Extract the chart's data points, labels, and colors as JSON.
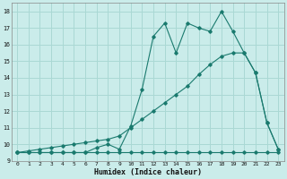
{
  "title": "",
  "xlabel": "Humidex (Indice chaleur)",
  "ylabel": "",
  "bg_color": "#caecea",
  "grid_color": "#aad8d4",
  "line_color": "#1a7a6e",
  "xlim": [
    -0.5,
    23.5
  ],
  "ylim": [
    9,
    18.5
  ],
  "yticks": [
    9,
    10,
    11,
    12,
    13,
    14,
    15,
    16,
    17,
    18
  ],
  "xticks": [
    0,
    1,
    2,
    3,
    4,
    5,
    6,
    7,
    8,
    9,
    10,
    11,
    12,
    13,
    14,
    15,
    16,
    17,
    18,
    19,
    20,
    21,
    22,
    23
  ],
  "line1_x": [
    0,
    1,
    2,
    3,
    4,
    5,
    6,
    7,
    8,
    9,
    10,
    11,
    12,
    13,
    14,
    15,
    16,
    17,
    18,
    19,
    20,
    21,
    22,
    23
  ],
  "line1_y": [
    9.5,
    9.5,
    9.5,
    9.5,
    9.5,
    9.5,
    9.5,
    9.5,
    9.5,
    9.5,
    9.5,
    9.5,
    9.5,
    9.5,
    9.5,
    9.5,
    9.5,
    9.5,
    9.5,
    9.5,
    9.5,
    9.5,
    9.5,
    9.5
  ],
  "line2_x": [
    0,
    1,
    2,
    3,
    4,
    5,
    6,
    7,
    8,
    9,
    10,
    11,
    12,
    13,
    14,
    15,
    16,
    17,
    18,
    19,
    20,
    21,
    22,
    23
  ],
  "line2_y": [
    9.5,
    9.6,
    9.7,
    9.8,
    9.9,
    10.0,
    10.1,
    10.2,
    10.3,
    10.5,
    11.0,
    11.5,
    12.0,
    12.5,
    13.0,
    13.5,
    14.2,
    14.8,
    15.3,
    15.5,
    15.5,
    14.3,
    11.3,
    9.7
  ],
  "line3_x": [
    0,
    1,
    2,
    3,
    4,
    5,
    6,
    7,
    8,
    9,
    10,
    11,
    12,
    13,
    14,
    15,
    16,
    17,
    18,
    19,
    20,
    21,
    22,
    23
  ],
  "line3_y": [
    9.5,
    9.5,
    9.5,
    9.5,
    9.5,
    9.5,
    9.5,
    9.8,
    10.0,
    9.7,
    11.1,
    13.3,
    16.5,
    17.3,
    15.5,
    17.3,
    17.0,
    16.8,
    18.0,
    16.8,
    15.5,
    14.3,
    11.3,
    9.7
  ]
}
